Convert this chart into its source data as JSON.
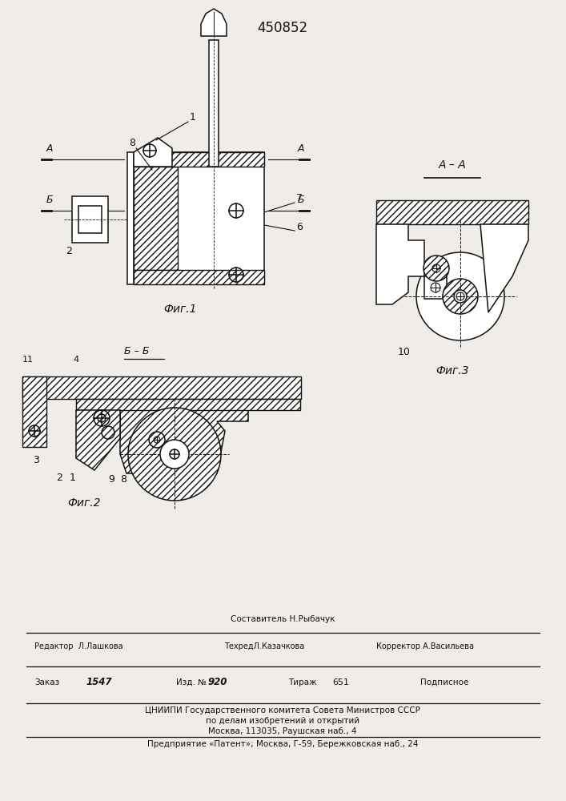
{
  "patent_number": "450852",
  "bg": "#f0ede8",
  "lc": "#111111",
  "fig1_label": "Фиг.1",
  "fig2_label": "Фиг.2",
  "fig3_label": "Фиг.3",
  "footer_sestavitel": "Составитель Н.Рыбачук",
  "footer_redaktor": "Редактор  Л.Лашкова",
  "footer_tehred": "ТехредЛ.Казачкова",
  "footer_korrektor": "Корректор А.Васильева",
  "footer_zakaz": "Заказ",
  "footer_zakaz_n": "1547",
  "footer_izd": "Изд. №",
  "footer_izd_n": "920",
  "footer_tirazh": "Тираж",
  "footer_tirazh_n": "651",
  "footer_podpisnoe": "Подписное",
  "footer_cniip1": "ЦНИИПИ Государственного комитета Совета Министров СССР",
  "footer_cniip2": "по делам изобретений и открытий",
  "footer_cniip3": "Москва, 113035, Раушская наб., 4",
  "footer_predp": "Предприятие «Патент»; Москва, Г-59, Бережковская наб., 24"
}
